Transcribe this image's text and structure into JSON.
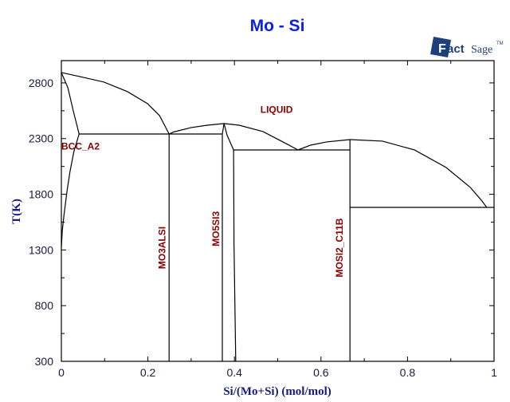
{
  "chart_data": {
    "type": "line",
    "title": "Mo - Si",
    "xlabel": "Si/(Mo+Si) (mol/mol)",
    "ylabel": "T(K)",
    "xlim": [
      0,
      1
    ],
    "ylim": [
      300,
      3000
    ],
    "xticks": [
      0,
      0.2,
      0.4,
      0.6,
      0.8,
      1
    ],
    "xtick_labels": [
      "0",
      "0.2",
      "0.4",
      "0.6",
      "0.8",
      "1"
    ],
    "xminor": [
      0.1,
      0.3,
      0.5,
      0.7,
      0.9
    ],
    "yticks": [
      300,
      800,
      1300,
      1800,
      2300,
      2800
    ],
    "ytick_labels": [
      "300",
      "800",
      "1300",
      "1800",
      "2300",
      "2800"
    ],
    "yminor": [
      550,
      1050,
      1550,
      2050,
      2550
    ],
    "grid": false,
    "logo": "FactSage",
    "phase_labels": [
      {
        "text": "LIQUID",
        "x": 0.46,
        "T": 2530,
        "rotate": false
      },
      {
        "text": "BCC_A2",
        "x": 0.0,
        "T": 2200,
        "rotate": false
      },
      {
        "text": "MO3ALSI",
        "x": 0.24,
        "T": 1320,
        "rotate": true
      },
      {
        "text": "MO5SI3",
        "x": 0.365,
        "T": 1490,
        "rotate": true
      },
      {
        "text": "MOSI2_C11B",
        "x": 0.65,
        "T": 1320,
        "rotate": true
      }
    ],
    "boundaries": [
      {
        "name": "liquidus-mo-side",
        "points": [
          [
            0,
            2893
          ],
          [
            0.042,
            2857
          ],
          [
            0.098,
            2808
          ],
          [
            0.153,
            2721
          ],
          [
            0.199,
            2614
          ],
          [
            0.227,
            2506
          ],
          [
            0.249,
            2341
          ]
        ]
      },
      {
        "name": "liquidus-mo3si-mo5si3",
        "points": [
          [
            0.249,
            2341
          ],
          [
            0.26,
            2360
          ],
          [
            0.3,
            2399
          ],
          [
            0.337,
            2420
          ],
          [
            0.376,
            2435
          ]
        ]
      },
      {
        "name": "liquidus-mo5si3-eutectic",
        "points": [
          [
            0.376,
            2435
          ],
          [
            0.411,
            2420
          ],
          [
            0.466,
            2363
          ],
          [
            0.512,
            2270
          ],
          [
            0.547,
            2198
          ]
        ]
      },
      {
        "name": "liquidus-eutectic-mosi2",
        "points": [
          [
            0.547,
            2198
          ],
          [
            0.576,
            2241
          ],
          [
            0.613,
            2270
          ],
          [
            0.667,
            2291
          ]
        ]
      },
      {
        "name": "liquidus-si-side",
        "points": [
          [
            0.667,
            2291
          ],
          [
            0.742,
            2277
          ],
          [
            0.816,
            2198
          ],
          [
            0.889,
            2041
          ],
          [
            0.945,
            1862
          ],
          [
            0.972,
            1740
          ],
          [
            0.983,
            1682
          ]
        ]
      },
      {
        "name": "bcc-solidus",
        "points": [
          [
            0,
            2893
          ],
          [
            0.015,
            2757
          ],
          [
            0.028,
            2542
          ],
          [
            0.041,
            2341
          ]
        ]
      },
      {
        "name": "bcc-solvus",
        "points": [
          [
            0.041,
            2341
          ],
          [
            0.029,
            2184
          ],
          [
            0.02,
            2005
          ],
          [
            0.013,
            1826
          ],
          [
            0.006,
            1611
          ],
          [
            0.002,
            1468
          ],
          [
            0,
            1324
          ]
        ]
      },
      {
        "name": "peritectic-line",
        "points": [
          [
            0.041,
            2341
          ],
          [
            0.372,
            2341
          ]
        ]
      },
      {
        "name": "mo3si-line",
        "points": [
          [
            0.249,
            2341
          ],
          [
            0.249,
            300
          ]
        ]
      },
      {
        "name": "mo5si3-left-boundary",
        "points": [
          [
            0.376,
            2435
          ],
          [
            0.372,
            2341
          ],
          [
            0.372,
            300
          ]
        ]
      },
      {
        "name": "mo5si3-right-boundary",
        "points": [
          [
            0.376,
            2435
          ],
          [
            0.383,
            2330
          ],
          [
            0.398,
            2198
          ],
          [
            0.399,
            1350
          ],
          [
            0.403,
            300
          ]
        ]
      },
      {
        "name": "eutectic-line",
        "points": [
          [
            0.398,
            2198
          ],
          [
            0.667,
            2198
          ]
        ]
      },
      {
        "name": "mosi2-line",
        "points": [
          [
            0.667,
            2291
          ],
          [
            0.667,
            300
          ]
        ]
      },
      {
        "name": "si-eutectic-line",
        "points": [
          [
            0.667,
            1682
          ],
          [
            1,
            1682
          ]
        ]
      }
    ]
  }
}
